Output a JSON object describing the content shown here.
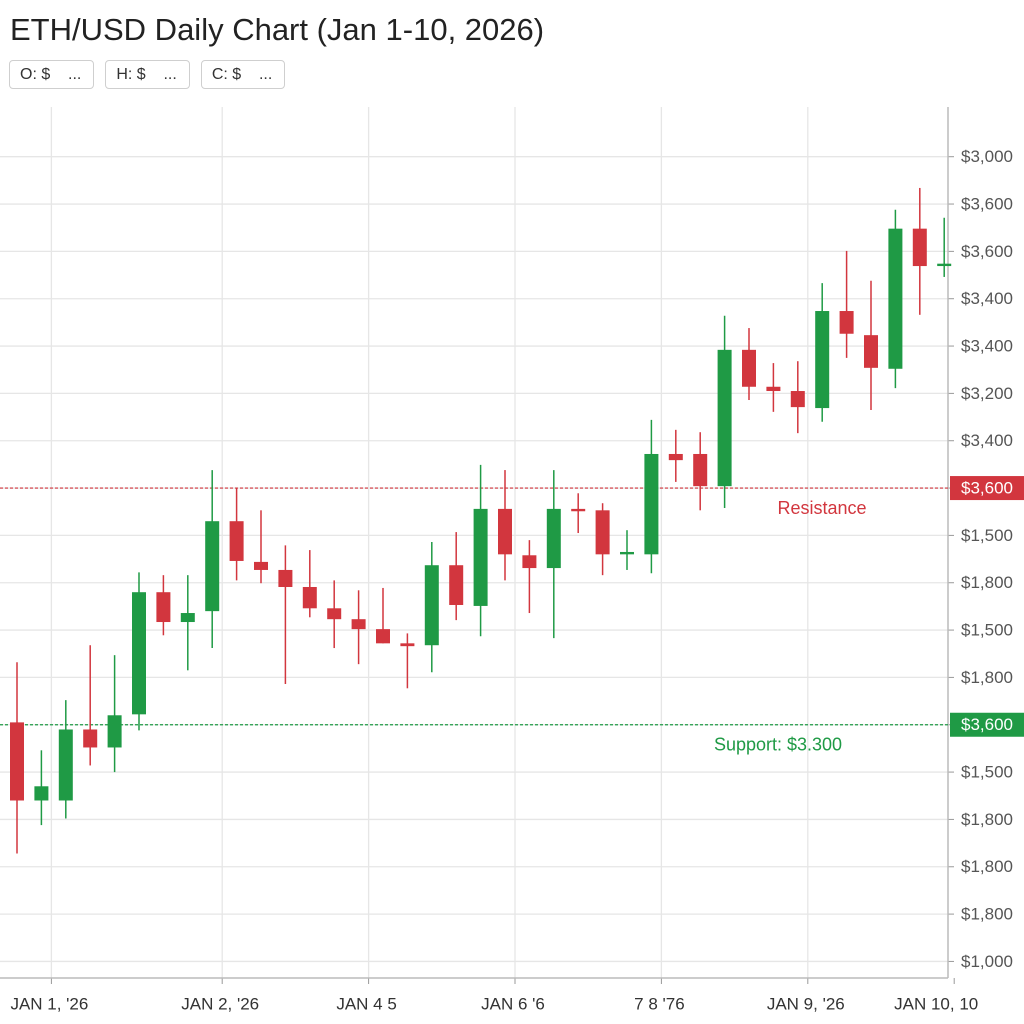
{
  "chart_data": {
    "type": "candlestick",
    "title": "ETH/USD Daily Chart (Jan 1-10, 2026)",
    "fields": [
      "O: $    ...",
      "H: $    ...",
      "C: $    ..."
    ],
    "categories": [
      null,
      "JAN 1, '26",
      null,
      null,
      null,
      null,
      null,
      null,
      "JAN 2, '26",
      null,
      null,
      null,
      null,
      null,
      "JAN 4 5",
      null,
      null,
      null,
      null,
      null,
      "JAN 6 '6",
      null,
      null,
      null,
      null,
      null,
      "7 8  '76",
      null,
      null,
      null,
      null,
      null,
      "JAN 9, '26",
      null,
      null,
      null,
      null,
      null,
      "JAN 10, 10"
    ],
    "open": [
      5.05,
      3.4,
      3.4,
      4.9,
      4.52,
      5.22,
      7.8,
      7.17,
      7.4,
      9.3,
      8.44,
      8.27,
      7.91,
      7.46,
      7.23,
      7.02,
      6.72,
      6.68,
      8.37,
      7.51,
      9.56,
      8.58,
      8.31,
      9.56,
      9.53,
      8.6,
      8.6,
      10.72,
      10.72,
      10.04,
      12.92,
      12.14,
      12.05,
      11.69,
      13.74,
      13.23,
      12.52,
      15.48,
      14.69
    ],
    "high": [
      6.32,
      4.46,
      5.52,
      6.68,
      6.47,
      8.22,
      8.16,
      8.16,
      10.38,
      10.0,
      9.53,
      8.79,
      8.69,
      8.05,
      7.84,
      7.89,
      6.93,
      8.86,
      9.07,
      10.49,
      10.38,
      8.9,
      10.38,
      9.89,
      9.68,
      9.11,
      11.44,
      11.23,
      11.18,
      13.64,
      13.38,
      12.64,
      12.68,
      14.33,
      15.01,
      14.38,
      15.88,
      16.34,
      15.71
    ],
    "low": [
      2.28,
      2.88,
      3.02,
      4.14,
      4.0,
      4.88,
      6.89,
      6.15,
      6.62,
      8.05,
      7.99,
      5.86,
      7.27,
      6.62,
      6.28,
      6.72,
      5.77,
      6.11,
      7.21,
      6.87,
      8.05,
      7.36,
      6.83,
      9.05,
      8.16,
      8.27,
      8.2,
      10.13,
      9.53,
      9.58,
      11.86,
      11.61,
      11.16,
      11.4,
      12.75,
      11.65,
      12.11,
      13.66,
      14.46
    ],
    "close": [
      3.4,
      3.7,
      4.9,
      4.52,
      5.2,
      7.8,
      7.17,
      7.36,
      9.3,
      8.46,
      8.27,
      7.91,
      7.46,
      7.23,
      7.02,
      6.72,
      6.66,
      8.37,
      7.53,
      9.56,
      8.6,
      8.31,
      9.56,
      9.51,
      8.6,
      8.65,
      10.72,
      10.59,
      10.04,
      12.92,
      12.14,
      12.05,
      11.71,
      13.74,
      13.26,
      12.54,
      15.48,
      14.69,
      14.74
    ],
    "up_color": "#1f9a45",
    "down_color": "#d2363e",
    "ylim": [
      -0.35,
      18.05
    ],
    "yticks": [
      {
        "value": 0,
        "label": "$1,000"
      },
      {
        "value": 1,
        "label": "$1,800"
      },
      {
        "value": 2,
        "label": "$1,800"
      },
      {
        "value": 3,
        "label": "$1,800"
      },
      {
        "value": 4,
        "label": "$1,500"
      },
      {
        "value": 5,
        "label": "$3,600"
      },
      {
        "value": 6,
        "label": "$1,800"
      },
      {
        "value": 7,
        "label": "$1,500"
      },
      {
        "value": 8,
        "label": "$1,800"
      },
      {
        "value": 9,
        "label": "$1,500"
      },
      {
        "value": 10,
        "label": "$3,600"
      },
      {
        "value": 11,
        "label": "$3,400"
      },
      {
        "value": 12,
        "label": "$3,200"
      },
      {
        "value": 13,
        "label": "$3,400"
      },
      {
        "value": 14,
        "label": "$3,400"
      },
      {
        "value": 15,
        "label": "$3,600"
      },
      {
        "value": 16,
        "label": "$3,600"
      },
      {
        "value": 17,
        "label": "$3,000"
      }
    ],
    "hlines": [
      {
        "value": 10,
        "label": "Resistance",
        "color": "#d2363e"
      },
      {
        "value": 5,
        "label": "Support: $3.300",
        "color": "#1f9a45"
      }
    ],
    "grid": true
  }
}
